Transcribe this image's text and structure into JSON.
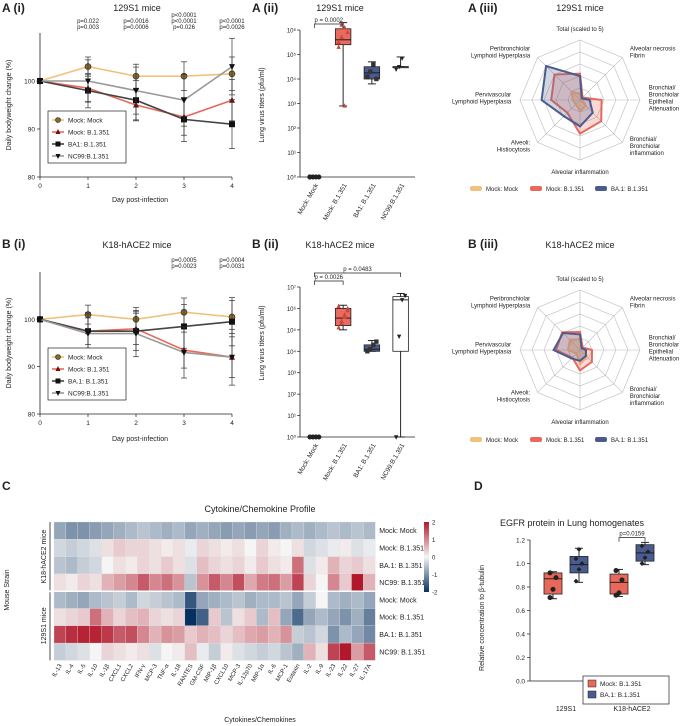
{
  "colors": {
    "mock": "#f1c27d",
    "b1351": "#e8695b",
    "ba1": "#4a5c8f",
    "nc99": "#999999",
    "black": "#222222",
    "pblue": "#4a6fb8",
    "pred": "#e0554a"
  },
  "panel_labels": {
    "a1": "A (i)",
    "a2": "A (ii)",
    "a3": "A (iii)",
    "b1": "B (i)",
    "b2": "B (ii)",
    "b3": "B (iii)",
    "c": "C",
    "d": "D"
  },
  "chart_data": [
    {
      "id": "a1",
      "type": "line",
      "title": "129S1 mice",
      "xlabel": "Day post-infection",
      "ylabel": "Daily bodyweight change (%)",
      "x": [
        0,
        1,
        2,
        3,
        4
      ],
      "xlim": [
        0,
        4
      ],
      "ylim": [
        80,
        110
      ],
      "yticks": [
        80,
        90,
        100
      ],
      "series": [
        {
          "name": "Mock: Mock",
          "values": [
            100,
            103,
            101,
            101,
            101.5
          ]
        },
        {
          "name": "Mock: B.1.351",
          "values": [
            100,
            98.5,
            95,
            92.5,
            96
          ]
        },
        {
          "name": "BA1: B.1.351",
          "values": [
            100,
            98,
            96,
            92,
            91
          ]
        },
        {
          "name": "NC99:B.1.351",
          "values": [
            100,
            100,
            98,
            96,
            103
          ]
        }
      ],
      "pvalues": [
        {
          "x": 1,
          "lines": [
            {
              "text": "p=0.022",
              "c": "pblue"
            },
            {
              "text": "p=0.003",
              "c": "pred"
            }
          ]
        },
        {
          "x": 2,
          "lines": [
            {
              "text": "p=0.0016",
              "c": "pblue"
            },
            {
              "text": "p=0.0006",
              "c": "pred"
            }
          ]
        },
        {
          "x": 3,
          "lines": [
            {
              "text": "p<0.0001",
              "c": "pblue"
            },
            {
              "text": "p<0.0001",
              "c": "pred"
            },
            {
              "text": "p=0.026",
              "c": "black"
            }
          ]
        },
        {
          "x": 4,
          "lines": [
            {
              "text": "p<0.0001",
              "c": "pblue"
            },
            {
              "text": "p=0.0026",
              "c": "pred"
            }
          ]
        }
      ]
    },
    {
      "id": "a2",
      "type": "box",
      "title": "129S1 mice",
      "ylabel": "Lung virus titers (pfu/ml)",
      "scale": "log",
      "ylim_exp": [
        0,
        6
      ],
      "yticks": [
        "10⁰",
        "10¹",
        "10²",
        "10³",
        "10⁴",
        "10⁵",
        "10⁶"
      ],
      "categories": [
        "Mock: Mock",
        "Mock: B.1.351",
        "BA1: B.1.351",
        "NC99:B.1.351"
      ],
      "groups": [
        {
          "min": 0,
          "q1": 0,
          "med": 0,
          "q3": 0,
          "max": 0,
          "pts": [
            0,
            0,
            0,
            0,
            0
          ]
        },
        {
          "min": 2.9,
          "q1": 5.4,
          "med": 5.6,
          "q3": 6.05,
          "max": 6.3,
          "pts": [
            5.5,
            5.7,
            6.1,
            5.9,
            5.3,
            6.2,
            2.9
          ]
        },
        {
          "min": 3.8,
          "q1": 4.0,
          "med": 4.25,
          "q3": 4.5,
          "max": 4.7,
          "pts": [
            4.1,
            4.3,
            4.6,
            4.0
          ]
        },
        {
          "min": 4.5,
          "q1": 4.5,
          "med": 4.5,
          "q3": 4.5,
          "max": 4.9,
          "pts": [
            4.4,
            4.5,
            4.85
          ]
        }
      ],
      "sig": [
        {
          "from": 0,
          "to": 1,
          "text": "p = 0.0002"
        }
      ]
    },
    {
      "id": "a3",
      "type": "radar",
      "title": "129S1 mice",
      "max": 5,
      "axes": [
        "Total (scaled to 5)",
        "Alveolar necrosis Fibrin",
        "Bronchial/ Bronchiolar Epithelial Attenuation",
        "Bronchial/ Bronchiolar inflammation",
        "Alveolar inflammation",
        "Alveoli: Histiocytosis",
        "Pervivascular Lymphoid Hyperplasia",
        "Peribronchiolar Lymphoid Hyperplasia"
      ],
      "series": [
        {
          "name": "Mock: Mock",
          "values": [
            0.5,
            0.3,
            0.2,
            0.7,
            0.9,
            0.5,
            0.6,
            1.0
          ]
        },
        {
          "name": "Mock: B.1.351",
          "values": [
            2.2,
            0.3,
            1.8,
            2.5,
            2.8,
            1.5,
            2.4,
            3.0
          ]
        },
        {
          "name": "BA.1: B.1.351",
          "values": [
            2.0,
            0.2,
            0.8,
            1.5,
            2.2,
            1.9,
            3.2,
            4.0
          ]
        }
      ]
    },
    {
      "id": "b1",
      "type": "line",
      "title": "K18-hACE2 mice",
      "xlabel": "Day post-infection",
      "ylabel": "Daily bodyweight change (%)",
      "x": [
        0,
        1,
        2,
        3,
        4
      ],
      "xlim": [
        0,
        4
      ],
      "ylim": [
        80,
        110
      ],
      "yticks": [
        80,
        90,
        100
      ],
      "series": [
        {
          "name": "Mock: Mock",
          "values": [
            100,
            101,
            100,
            101.5,
            100.5
          ]
        },
        {
          "name": "Mock: B.1.351",
          "values": [
            100,
            97.5,
            98,
            93.5,
            92
          ]
        },
        {
          "name": "BA.1: B.1.351",
          "values": [
            100,
            97.5,
            97.5,
            98.5,
            99.5
          ]
        },
        {
          "name": "NC99:B.1.351",
          "values": [
            100,
            97,
            97,
            93,
            92
          ]
        }
      ],
      "pvalues": [
        {
          "x": 3,
          "lines": [
            {
              "text": "p=0.0005",
              "c": "pred"
            },
            {
              "text": "p=0.0023",
              "c": "black"
            }
          ]
        },
        {
          "x": 4,
          "lines": [
            {
              "text": "p=0.0004",
              "c": "pred"
            },
            {
              "text": "p=0.0031",
              "c": "black"
            }
          ]
        }
      ]
    },
    {
      "id": "b2",
      "type": "box",
      "title": "K18-hACE2 mice",
      "ylabel": "Lung virus titers (pfu/ml)",
      "scale": "log",
      "ylim_exp": [
        0,
        7
      ],
      "yticks": [
        "10⁰",
        "10¹",
        "10²",
        "10³",
        "10⁴",
        "10⁵",
        "10⁶",
        "10⁷"
      ],
      "categories": [
        "Mock: Mock",
        "Mock: B.1.351",
        "BA1: B.1.351",
        "NC99:B.1.351"
      ],
      "groups": [
        {
          "min": 0,
          "q1": 0,
          "med": 0,
          "q3": 0,
          "max": 0,
          "pts": [
            0,
            0,
            0,
            0
          ]
        },
        {
          "min": 5.0,
          "q1": 5.2,
          "med": 5.55,
          "q3": 6.0,
          "max": 6.15,
          "pts": [
            5.1,
            5.4,
            5.6,
            5.9,
            6.1,
            5.3,
            5.7,
            6.0
          ]
        },
        {
          "min": 4.0,
          "q1": 4.0,
          "med": 4.1,
          "q3": 4.3,
          "max": 4.5,
          "pts": [
            4.0,
            4.1,
            4.3,
            4.45
          ]
        },
        {
          "min": 0,
          "q1": 4.0,
          "med": 6.4,
          "q3": 6.55,
          "max": 6.7,
          "pts": [
            0,
            4.7,
            6.4,
            6.6
          ]
        }
      ],
      "sig": [
        {
          "from": 0,
          "to": 1,
          "text": "p = 0.0026"
        },
        {
          "from": 0,
          "to": 3,
          "text": "p = 0.0483"
        }
      ]
    },
    {
      "id": "b3",
      "type": "radar",
      "title": "K18-hACE2 mice",
      "max": 5,
      "axes": [
        "Total (scaled to 5)",
        "Alveolar necrosis Fibrin",
        "Bronchial/ Bronchiolar Epithelial Attenuation",
        "Bronchial/ Bronchiolar inflammation",
        "Alveolar inflammation",
        "Alveoli: Histiocytosis",
        "Pervivascular Lymphoid Hyperplasia",
        "Peribronchiolar Lymphoid Hyperplasia"
      ],
      "series": [
        {
          "name": "Mock: Mock",
          "values": [
            0.9,
            0.3,
            0.4,
            0.8,
            1.2,
            0.4,
            1.0,
            1.2
          ]
        },
        {
          "name": "Mock: B.1.351",
          "values": [
            1.5,
            0.3,
            1.0,
            1.4,
            1.7,
            0.9,
            2.0,
            2.1
          ]
        },
        {
          "name": "BA.1: B.1.351",
          "values": [
            1.3,
            0.2,
            0.5,
            0.7,
            0.9,
            1.0,
            2.2,
            2.0
          ]
        }
      ]
    },
    {
      "id": "c",
      "type": "heatmap",
      "title": "Cytokine/Chemokine Profile",
      "xlabel": "Cytokines/Chemokines",
      "ylabel": "Mouse Strain",
      "strains": [
        "K18-hACE2 mice",
        "129S1 mice"
      ],
      "columns": [
        "IL-13",
        "IL-4",
        "IL-5",
        "IL-10",
        "IL-1β",
        "CXCL1",
        "CXCL2",
        "IFN-γ",
        "MCP-3",
        "TNF-α",
        "IL-18",
        "RANTES",
        "GM-CSF",
        "MIP-1β",
        "CXCL10",
        "MCP-3",
        "IL-12p70",
        "MIP-1α",
        "IL-6",
        "MCP-1",
        "Eotaxin",
        "IL-2",
        "IL-9",
        "IL-23",
        "IL-22",
        "IL-27",
        "IL-17A"
      ],
      "rows": [
        "Mock: Mock",
        "Mock: B.1.351",
        "BA.1: B.1.351",
        "NC99: B.1.351",
        "Mock: Mock",
        "Mock: B.1.351",
        "BA.1: B.1.351",
        "NC99: B.1.351"
      ],
      "colorbar": {
        "min": -2,
        "max": 2,
        "ticks": [
          "2",
          "1",
          "0",
          "-1",
          "-2"
        ]
      },
      "matrix": [
        [
          -0.8,
          -1.0,
          -1.0,
          -0.9,
          -0.8,
          -0.7,
          -0.6,
          -0.5,
          -0.6,
          -0.7,
          -0.6,
          -0.8,
          -0.7,
          -0.8,
          -0.9,
          -0.8,
          -0.9,
          -0.8,
          -0.9,
          -0.7,
          -0.6,
          -0.7,
          -0.6,
          -0.5,
          -0.6,
          -0.5,
          -0.6
        ],
        [
          -0.3,
          -0.4,
          -0.3,
          -0.2,
          0.2,
          0.4,
          0.3,
          0.3,
          0.2,
          0.1,
          0.2,
          -0.1,
          0.3,
          0.2,
          0.1,
          0.2,
          0.0,
          0.3,
          0.1,
          0.0,
          0.2,
          -0.3,
          -0.2,
          -0.1,
          0.1,
          -0.2,
          -0.1
        ],
        [
          -0.5,
          -0.6,
          -0.4,
          -0.3,
          0.0,
          0.2,
          0.1,
          0.3,
          0.2,
          0.4,
          0.2,
          -0.2,
          0.5,
          0.3,
          0.2,
          0.3,
          0.1,
          0.4,
          0.2,
          0.1,
          1.2,
          -0.2,
          0.1,
          0.6,
          0.3,
          0.4,
          0.2
        ],
        [
          0.2,
          0.1,
          0.3,
          0.2,
          0.6,
          0.8,
          1.0,
          1.4,
          1.0,
          1.2,
          0.9,
          -0.5,
          0.9,
          1.4,
          1.0,
          1.5,
          0.7,
          1.1,
          1.2,
          0.8,
          1.6,
          0.3,
          0.0,
          1.0,
          0.4,
          2.2,
          0.6
        ],
        [
          -0.6,
          -0.7,
          -0.8,
          -0.6,
          -0.5,
          -0.4,
          -0.6,
          -0.3,
          -0.4,
          -0.5,
          -0.6,
          -1.6,
          -0.8,
          -0.7,
          -0.6,
          -0.5,
          -0.7,
          -0.6,
          -0.6,
          -0.5,
          -0.8,
          -0.4,
          0.0,
          -0.6,
          -0.7,
          -0.6,
          -0.8
        ],
        [
          0.2,
          0.3,
          0.4,
          1.2,
          0.6,
          0.3,
          0.5,
          0.6,
          0.3,
          0.2,
          0.3,
          -2.2,
          -1.5,
          0.4,
          -0.5,
          0.2,
          0.4,
          -0.6,
          0.5,
          -0.8,
          -1.4,
          -0.8,
          -0.6,
          -0.8,
          -1.0,
          -0.7,
          -1.2
        ],
        [
          1.6,
          1.8,
          1.9,
          1.9,
          1.7,
          1.4,
          1.5,
          1.0,
          0.6,
          0.9,
          0.8,
          0.4,
          0.6,
          0.5,
          0.3,
          0.5,
          0.7,
          0.8,
          0.6,
          0.9,
          -0.4,
          -0.5,
          -0.3,
          -1.0,
          -0.6,
          -0.8,
          -1.1
        ],
        [
          -0.4,
          -0.3,
          -0.2,
          0.0,
          0.3,
          0.2,
          0.1,
          0.2,
          -0.2,
          0.0,
          0.1,
          0.5,
          -0.1,
          -0.4,
          0.1,
          -0.2,
          -0.3,
          -0.4,
          -0.3,
          -0.5,
          -0.7,
          0.6,
          0.2,
          1.6,
          2.0,
          0.8,
          1.4
        ]
      ]
    },
    {
      "id": "d",
      "type": "box",
      "title": "EGFR protein in Lung homogenates",
      "ylabel": "Relative concentration to β-tubulin",
      "ylim": [
        0,
        1.2
      ],
      "yticks": [
        "0.0",
        "0.2",
        "0.4",
        "0.6",
        "0.8",
        "1.0",
        "1.2"
      ],
      "categories": [
        "129S1",
        "K18-hACE2"
      ],
      "series": [
        {
          "name": "Mock: B.1.351",
          "groups": [
            {
              "min": 0.7,
              "q1": 0.74,
              "med": 0.87,
              "q3": 0.92,
              "max": 0.93,
              "pts": [
                0.71,
                0.78,
                0.88,
                0.92
              ]
            },
            {
              "min": 0.72,
              "q1": 0.74,
              "med": 0.84,
              "q3": 0.91,
              "max": 0.95,
              "pts": [
                0.73,
                0.75,
                0.86,
                0.94
              ]
            }
          ]
        },
        {
          "name": "BA.1: B.1.351",
          "groups": [
            {
              "min": 0.84,
              "q1": 0.92,
              "med": 0.99,
              "q3": 1.06,
              "max": 1.13,
              "pts": [
                0.85,
                0.95,
                1.0,
                1.04,
                1.12
              ]
            },
            {
              "min": 0.99,
              "q1": 1.02,
              "med": 1.09,
              "q3": 1.16,
              "max": 1.18,
              "pts": [
                1.0,
                1.05,
                1.1,
                1.15
              ]
            }
          ]
        }
      ],
      "sig": [
        {
          "group": 1,
          "text": "p=0.0159"
        }
      ]
    }
  ],
  "legends": {
    "line_a": [
      "Mock: Mock",
      "Mock: B.1.351",
      "BA1: B.1.351",
      "NC99:B.1.351"
    ],
    "line_b": [
      "Mock: Mock",
      "Mock: B.1.351",
      "BA.1: B.1.351",
      "NC99:B.1.351"
    ],
    "radar": [
      "Mock: Mock",
      "Mock: B.1.351",
      "BA.1: B.1.351"
    ],
    "d": [
      "Mock: B.1.351",
      "BA.1: B.1.351"
    ]
  }
}
